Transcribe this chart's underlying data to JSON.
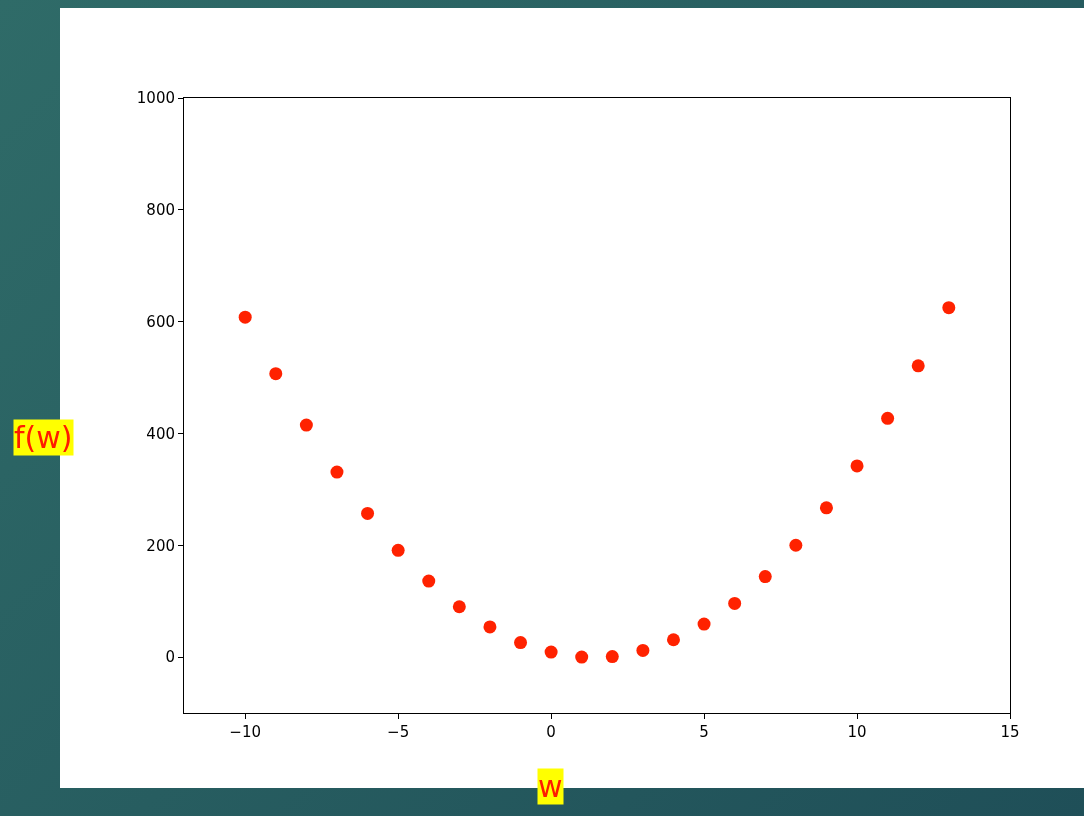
{
  "chart_data": {
    "type": "scatter",
    "xlabel": "w",
    "ylabel": "f(w)",
    "x": [
      -10,
      -9,
      -8,
      -7,
      -6,
      -5,
      -4,
      -3,
      -2,
      -1,
      0,
      1,
      2,
      3,
      4,
      5,
      6,
      7,
      8,
      9,
      10,
      11,
      12,
      13
    ],
    "series": [
      {
        "color": "#ff2200",
        "values": [
          608,
          507,
          415,
          331,
          257,
          191,
          136,
          90,
          54,
          26,
          9,
          0,
          1,
          12,
          31,
          59,
          96,
          144,
          200,
          267,
          342,
          427,
          521,
          625
        ]
      }
    ],
    "xlim": [
      -12,
      15
    ],
    "ylim": [
      -100,
      1000
    ],
    "xticks": [
      {
        "value": -10,
        "label": "−10"
      },
      {
        "value": -5,
        "label": "−5"
      },
      0,
      5,
      10,
      15
    ],
    "yticks": [
      0,
      200,
      400,
      600,
      800,
      1000
    ],
    "grid": false,
    "marker": "circle"
  }
}
